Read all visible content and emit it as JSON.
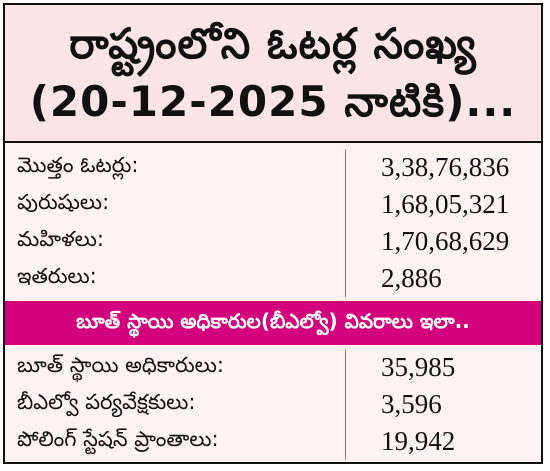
{
  "title": {
    "line1": "రాష్ట్రంలోని ఓటర్ల సంఖ్య",
    "line2": "(20-12-2025 నాటికి)..."
  },
  "voters": [
    {
      "label": "మొత్తం ఓటర్లు:",
      "value": "3,38,76,836"
    },
    {
      "label": "పురుషులు:",
      "value": "1,68,05,321"
    },
    {
      "label": "మహిళలు:",
      "value": "1,70,68,629"
    },
    {
      "label": "ఇతరులు:",
      "value": "2,886"
    }
  ],
  "banner": "బూత్ స్థాయి అధికారుల(బీఎల్వో) వివరాలు ఇలా..",
  "blo": [
    {
      "label": "బూత్ స్థాయి అధికారులు:",
      "value": "35,985"
    },
    {
      "label": "బీఎల్వో పర్యవేక్షకులు:",
      "value": "3,596"
    },
    {
      "label": "పోలింగ్ స్టేషన్ ప్రాంతాలు:",
      "value": "19,942"
    }
  ],
  "colors": {
    "header_bg": "#fde4e6",
    "body_bg": "#fdf3f3",
    "banner_bg": "#d2007a",
    "divider": "#c46a82"
  }
}
